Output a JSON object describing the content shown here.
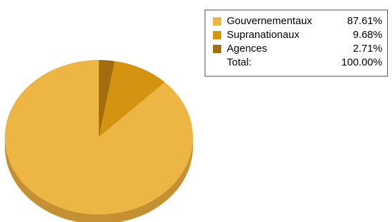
{
  "chart_data": {
    "type": "pie",
    "style": "3d",
    "slices": [
      {
        "label": "Gouvernementaux",
        "value": 87.61,
        "display": "87.61%",
        "color": "#EDB544",
        "side_color": "#C49031"
      },
      {
        "label": "Supranationaux",
        "value": 9.68,
        "display": "9.68%",
        "color": "#D4940F",
        "side_color": "#A8740A"
      },
      {
        "label": "Agences",
        "value": 2.71,
        "display": "2.71%",
        "color": "#A36D0F",
        "side_color": "#7E530A"
      }
    ],
    "total": {
      "label": "Total:",
      "display": "100.00%"
    },
    "legend_position": "top-right"
  }
}
